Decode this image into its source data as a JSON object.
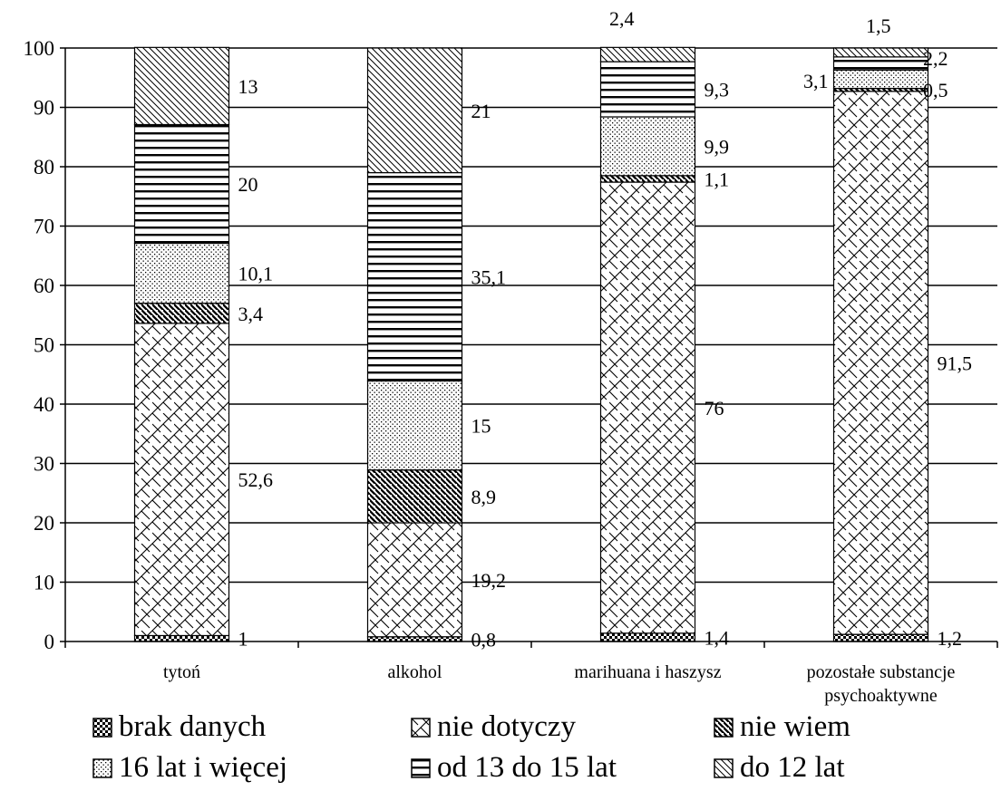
{
  "chart_data": {
    "type": "bar",
    "stacked": true,
    "categories": [
      "tytoń",
      "alkohol",
      "marihuana i haszysz",
      "pozostałe substancje psychoaktywne"
    ],
    "ylim": [
      0,
      100
    ],
    "yticks": [
      "0",
      "10",
      "20",
      "30",
      "40",
      "50",
      "60",
      "70",
      "80",
      "90",
      "100"
    ],
    "grid": true,
    "legend_position": "bottom",
    "series": [
      {
        "name": "brak danych",
        "pattern": "checker",
        "values": [
          1,
          0.8,
          1.4,
          1.2
        ],
        "labels": [
          "1",
          "0,8",
          "1,4",
          "1,2"
        ]
      },
      {
        "name": "nie dotyczy",
        "pattern": "weave",
        "values": [
          52.6,
          19.2,
          76,
          91.5
        ],
        "labels": [
          "52,6",
          "19,2",
          "76",
          "91,5"
        ]
      },
      {
        "name": "nie wiem",
        "pattern": "dense-diagonal",
        "values": [
          3.4,
          8.9,
          1.1,
          0.5
        ],
        "labels": [
          "3,4",
          "8,9",
          "1,1",
          "0,5"
        ]
      },
      {
        "name": "16 lat i więcej",
        "pattern": "dots",
        "values": [
          10.1,
          15,
          9.9,
          3.1
        ],
        "labels": [
          "10,1",
          "15",
          "9,9",
          "3,1"
        ]
      },
      {
        "name": "od 13 do 15 lat",
        "pattern": "horizontal",
        "values": [
          20,
          35.1,
          9.3,
          2.2
        ],
        "labels": [
          "20",
          "35,1",
          "9,3",
          "2,2"
        ]
      },
      {
        "name": "do 12 lat",
        "pattern": "diagonal",
        "values": [
          13,
          21,
          2.4,
          1.5
        ],
        "labels": [
          "13",
          "21",
          "2,4",
          "1,5"
        ]
      }
    ],
    "category_labels": [
      [
        "tytoń"
      ],
      [
        "alkohol"
      ],
      [
        "marihuana i haszysz"
      ],
      [
        "pozostałe substancje",
        "psychoaktywne"
      ]
    ]
  }
}
